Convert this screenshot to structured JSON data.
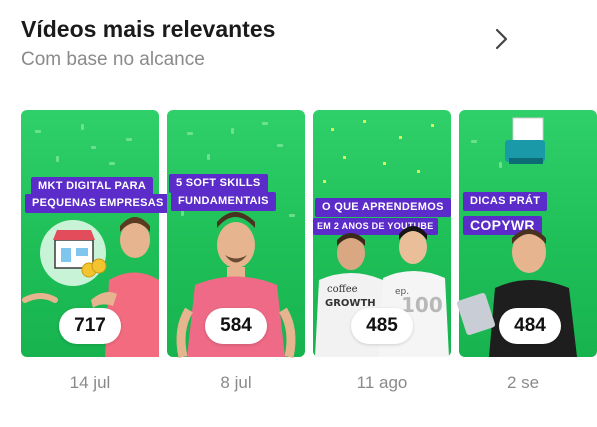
{
  "header": {
    "title": "Vídeos mais relevantes",
    "subtitle": "Com base no alcance"
  },
  "icons": {
    "more": "chevron-right-icon"
  },
  "videos": [
    {
      "banner1": "MKT DIGITAL PARA",
      "banner2": "PEQUENAS EMPRESAS",
      "count": "717",
      "date": "14 jul",
      "shirt": "#f26b7e"
    },
    {
      "banner1": "5 SOFT SKILLS",
      "banner2": "FUNDAMENTAIS",
      "count": "584",
      "date": "8 jul",
      "shirt": "#ee6a86"
    },
    {
      "banner1": "O QUE APRENDEMOS",
      "banner2": "EM 2 ANOS DE YOUTUBE",
      "shirt_text_1": "coffee",
      "shirt_text_2": "GROWTH",
      "shirt_text_3": "ep.",
      "shirt_text_4": "100",
      "count": "485",
      "date": "11 ago",
      "shirt": "#f2f2f2"
    },
    {
      "banner1": "DICAS PRÁT",
      "banner2": "COPYWR",
      "count": "484",
      "date": "2 se",
      "shirt": "#1e1e1e"
    }
  ],
  "colors": {
    "card_green": "#22c35a",
    "banner_purple": "#5b2cc9"
  }
}
